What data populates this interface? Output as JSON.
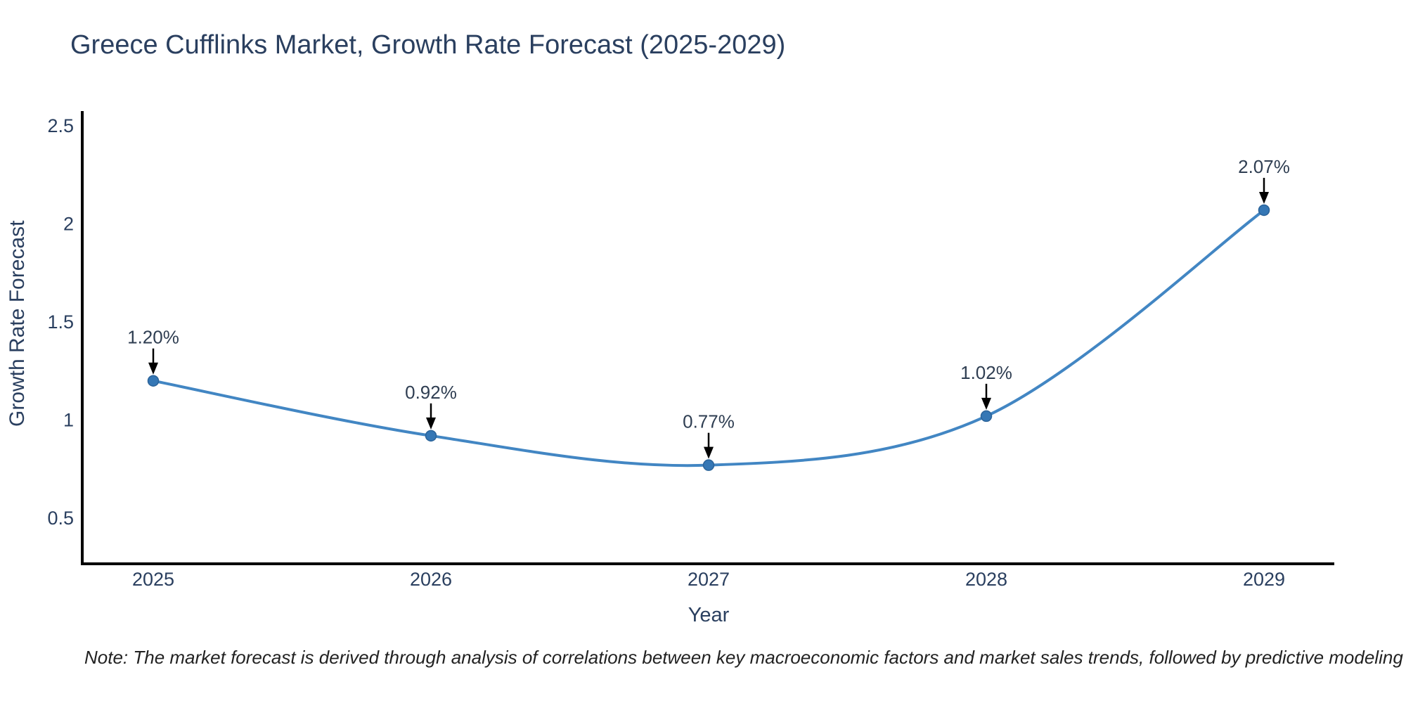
{
  "page": {
    "background": "#ffffff"
  },
  "chart_data": {
    "type": "line",
    "title": "Greece Cufflinks Market, Growth Rate Forecast (2025-2029)",
    "xlabel": "Year",
    "ylabel": "Growth Rate Forecast",
    "categories": [
      "2025",
      "2026",
      "2027",
      "2028",
      "2029"
    ],
    "values": [
      1.2,
      0.92,
      0.77,
      1.02,
      2.07
    ],
    "point_labels": [
      "1.20%",
      "0.92%",
      "0.77%",
      "1.02%",
      "2.07%"
    ],
    "ytick_labels": [
      "0.5",
      "1",
      "1.5",
      "2",
      "2.5"
    ],
    "ytick_values": [
      0.5,
      1,
      1.5,
      2,
      2.5
    ],
    "ylim": [
      0.27,
      2.68
    ],
    "line_shape": "spline",
    "grid": false,
    "legend": "none",
    "annotations_have_arrows": true,
    "colors": {
      "line": "#4286c3",
      "marker": "#3577b5",
      "marker_edge": "#2b6399",
      "axis": "#000000",
      "text": "#2a3f5f",
      "annotation_text": "#2f3e52",
      "annotation_arrow": "#000000",
      "note_text": "#222222"
    }
  },
  "note": "Note: The market forecast is derived through analysis of correlations between key macroeconomic factors and market sales trends, followed by predictive modeling to project future sales"
}
